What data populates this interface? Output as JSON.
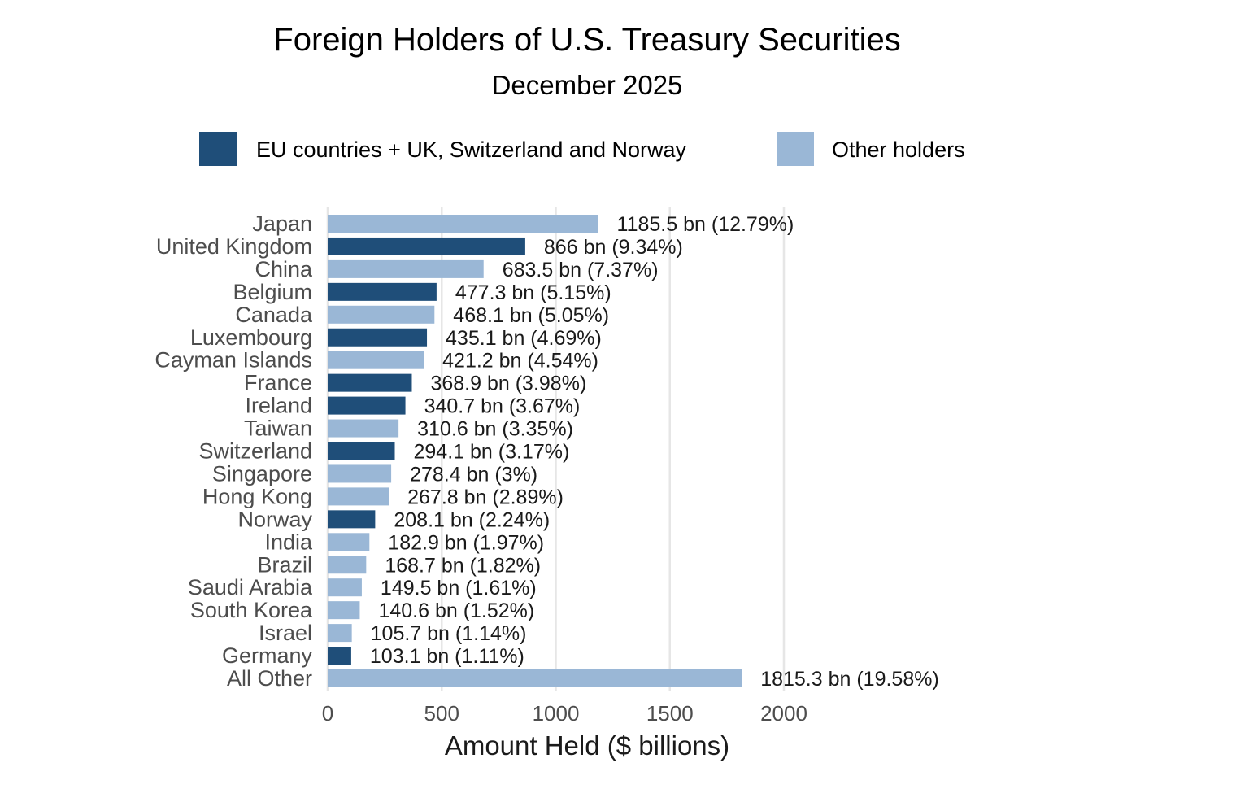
{
  "colors": {
    "eu": "#1f4e79",
    "other": "#9ab7d6",
    "grid": "#e6e6e6"
  },
  "legend": [
    {
      "group": "eu",
      "label": "EU countries + UK, Switzerland and Norway"
    },
    {
      "group": "other",
      "label": "Other holders"
    }
  ],
  "chart_data": {
    "type": "bar",
    "orientation": "horizontal",
    "title": "Foreign Holders of U.S. Treasury Securities",
    "subtitle": "December 2025",
    "xlabel": "Amount Held ($ billions)",
    "ylabel": "",
    "xlim": [
      0,
      2000
    ],
    "xticks": [
      0,
      500,
      1000,
      1500,
      2000
    ],
    "grid": true,
    "legend_position": "top",
    "bars": [
      {
        "category": "Japan",
        "value": 1185.5,
        "group": "other",
        "label": "1185.5 bn (12.79%)"
      },
      {
        "category": "United Kingdom",
        "value": 866,
        "group": "eu",
        "label": "866 bn (9.34%)"
      },
      {
        "category": "China",
        "value": 683.5,
        "group": "other",
        "label": "683.5 bn (7.37%)"
      },
      {
        "category": "Belgium",
        "value": 477.3,
        "group": "eu",
        "label": "477.3 bn (5.15%)"
      },
      {
        "category": "Canada",
        "value": 468.1,
        "group": "other",
        "label": "468.1 bn (5.05%)"
      },
      {
        "category": "Luxembourg",
        "value": 435.1,
        "group": "eu",
        "label": "435.1 bn (4.69%)"
      },
      {
        "category": "Cayman Islands",
        "value": 421.2,
        "group": "other",
        "label": "421.2 bn (4.54%)"
      },
      {
        "category": "France",
        "value": 368.9,
        "group": "eu",
        "label": "368.9 bn (3.98%)"
      },
      {
        "category": "Ireland",
        "value": 340.7,
        "group": "eu",
        "label": "340.7 bn (3.67%)"
      },
      {
        "category": "Taiwan",
        "value": 310.6,
        "group": "other",
        "label": "310.6 bn (3.35%)"
      },
      {
        "category": "Switzerland",
        "value": 294.1,
        "group": "eu",
        "label": "294.1 bn (3.17%)"
      },
      {
        "category": "Singapore",
        "value": 278.4,
        "group": "other",
        "label": "278.4 bn (3%)"
      },
      {
        "category": "Hong Kong",
        "value": 267.8,
        "group": "other",
        "label": "267.8 bn (2.89%)"
      },
      {
        "category": "Norway",
        "value": 208.1,
        "group": "eu",
        "label": "208.1 bn (2.24%)"
      },
      {
        "category": "India",
        "value": 182.9,
        "group": "other",
        "label": "182.9 bn (1.97%)"
      },
      {
        "category": "Brazil",
        "value": 168.7,
        "group": "other",
        "label": "168.7 bn (1.82%)"
      },
      {
        "category": "Saudi Arabia",
        "value": 149.5,
        "group": "other",
        "label": "149.5 bn (1.61%)"
      },
      {
        "category": "South Korea",
        "value": 140.6,
        "group": "other",
        "label": "140.6 bn (1.52%)"
      },
      {
        "category": "Israel",
        "value": 105.7,
        "group": "other",
        "label": "105.7 bn (1.14%)"
      },
      {
        "category": "Germany",
        "value": 103.1,
        "group": "eu",
        "label": "103.1 bn (1.11%)"
      },
      {
        "category": "All Other",
        "value": 1815.3,
        "group": "other",
        "label": "1815.3 bn (19.58%)"
      }
    ]
  }
}
